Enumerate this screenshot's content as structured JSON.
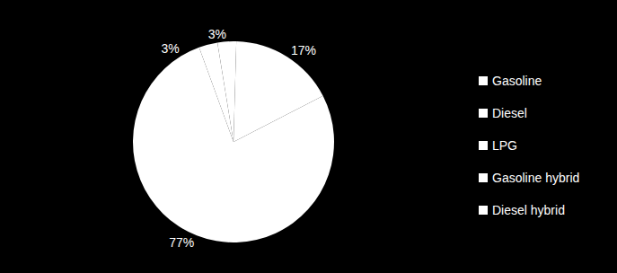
{
  "chart_data": {
    "type": "pie",
    "categories": [
      "Gasoline",
      "Diesel",
      "LPG",
      "Gasoline hybrid",
      "Diesel hybrid"
    ],
    "values": [
      77,
      17,
      3,
      3,
      0
    ],
    "value_labels": [
      "77%",
      "17%",
      "3%",
      "3%",
      null
    ],
    "colors": [
      "#ffffff",
      "#ffffff",
      "#ffffff",
      "#ffffff",
      "#ffffff"
    ],
    "data_labels": true,
    "legend": "right"
  }
}
